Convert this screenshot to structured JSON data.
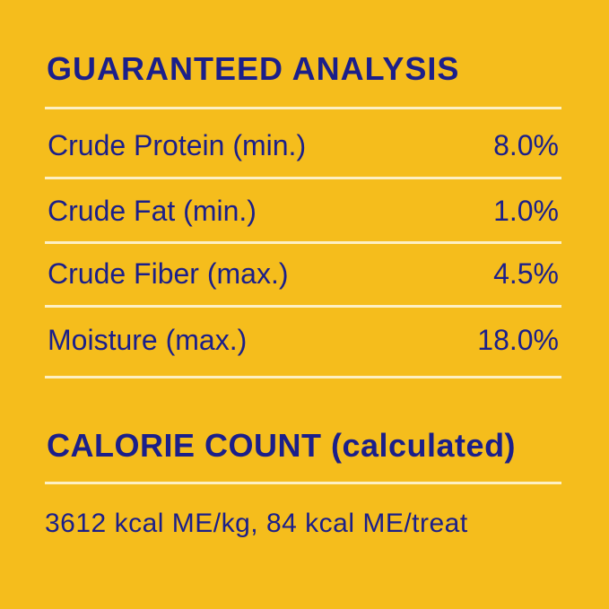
{
  "analysis": {
    "title": "GUARANTEED ANALYSIS",
    "rows": [
      {
        "label": "Crude Protein (min.)",
        "value": "8.0%"
      },
      {
        "label": "Crude Fat (min.)",
        "value": "1.0%"
      },
      {
        "label": "Crude Fiber (max.)",
        "value": "4.5%"
      },
      {
        "label": "Moisture (max.)",
        "value": "18.0%"
      }
    ]
  },
  "calorie": {
    "title": "CALORIE COUNT (calculated)",
    "text": "3612 kcal ME/kg, 84 kcal ME/treat"
  },
  "colors": {
    "background": "#F5BD1C",
    "text": "#1B1F8A",
    "rule": "#FDF0C4"
  }
}
